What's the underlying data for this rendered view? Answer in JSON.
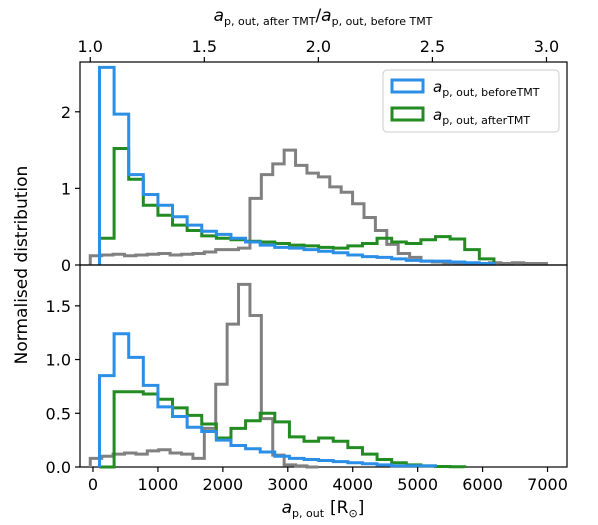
{
  "chart_data": {
    "type": "histogram",
    "xlabel": {
      "main": "a",
      "sub": "p, out",
      "unit": "[R",
      "unit_sub": "⊙",
      "unit_close": "]"
    },
    "ylabel": "Normalised distribution",
    "top_xlabel": {
      "num_main": "a",
      "num_sub": "p, out, after TMT",
      "slash": "/",
      "den_main": "a",
      "den_sub": "p, out, before TMT"
    },
    "xlim": [
      -200,
      7300
    ],
    "top_xlim": [
      0.955,
      3.09
    ],
    "xticks": [
      0,
      1000,
      2000,
      3000,
      4000,
      5000,
      6000,
      7000
    ],
    "top_xticks": [
      "1.0",
      "1.5",
      "2.0",
      "2.5",
      "3.0"
    ],
    "top_xtick_values": [
      1.0,
      1.5,
      2.0,
      2.5,
      3.0
    ],
    "legend": {
      "placement": "upper right",
      "entries": [
        {
          "main": "a",
          "sub": "p, out, beforeTMT",
          "color": "#2b8fe8"
        },
        {
          "main": "a",
          "sub": "p, out, afterTMT",
          "color": "#228b22"
        }
      ]
    },
    "colors": {
      "before": "#2b8fe8",
      "after": "#228b22",
      "ratio": "#808080"
    },
    "panels": [
      {
        "ylim": [
          0,
          2.65
        ],
        "yticks": [
          0,
          1,
          2
        ],
        "series": [
          {
            "key": "before",
            "bins_start": 100,
            "bin_width": 225,
            "values": [
              2.58,
              1.97,
              1.18,
              0.92,
              0.78,
              0.63,
              0.52,
              0.44,
              0.4,
              0.35,
              0.3,
              0.26,
              0.23,
              0.22,
              0.2,
              0.18,
              0.16,
              0.13,
              0.11,
              0.1,
              0.08,
              0.06,
              0.05,
              0.05,
              0.04,
              0.03,
              0.02
            ]
          },
          {
            "key": "after",
            "bins_start": 100,
            "bin_width": 225,
            "values": [
              0.35,
              1.52,
              1.12,
              0.78,
              0.65,
              0.52,
              0.45,
              0.38,
              0.35,
              0.33,
              0.31,
              0.3,
              0.28,
              0.26,
              0.25,
              0.23,
              0.22,
              0.25,
              0.28,
              0.35,
              0.3,
              0.28,
              0.33,
              0.37,
              0.34,
              0.2,
              0.08
            ]
          },
          {
            "key": "ratio",
            "x_start": 1.0,
            "bin_width": 0.05,
            "values": [
              0.12,
              0.13,
              0.14,
              0.12,
              0.13,
              0.14,
              0.15,
              0.13,
              0.14,
              0.15,
              0.17,
              0.2,
              0.2,
              0.22,
              0.87,
              1.18,
              1.32,
              1.5,
              1.3,
              1.2,
              1.15,
              1.02,
              0.95,
              0.8,
              0.62,
              0.45,
              0.27,
              0.15,
              0.1,
              0.05,
              0.04,
              0.03,
              0.02,
              0.02,
              0.02,
              0.03,
              0.02,
              0.03,
              0.02,
              0.02
            ]
          }
        ]
      },
      {
        "ylim": [
          0,
          1.88
        ],
        "yticks": [
          "0.0",
          "0.5",
          "1.0",
          "1.5"
        ],
        "series": [
          {
            "key": "before",
            "bins_start": 100,
            "bin_width": 225,
            "values": [
              0.85,
              1.24,
              1.02,
              0.76,
              0.56,
              0.47,
              0.37,
              0.33,
              0.25,
              0.2,
              0.17,
              0.14,
              0.1,
              0.08,
              0.07,
              0.06,
              0.05,
              0.04,
              0.03,
              0.02,
              0.01,
              0.01,
              0.01
            ]
          },
          {
            "key": "after",
            "bins_start": 100,
            "bin_width": 225,
            "values": [
              0.0,
              0.7,
              0.7,
              0.68,
              0.63,
              0.55,
              0.48,
              0.4,
              0.27,
              0.36,
              0.43,
              0.5,
              0.42,
              0.28,
              0.24,
              0.27,
              0.24,
              0.18,
              0.12,
              0.07,
              0.04,
              0.02,
              0.01,
              0.005,
              0.002
            ]
          },
          {
            "key": "ratio",
            "x_start": 1.0,
            "bin_width": 0.05,
            "values": [
              0.08,
              0.1,
              0.12,
              0.13,
              0.12,
              0.15,
              0.16,
              0.13,
              0.12,
              0.08,
              0.36,
              0.77,
              1.33,
              1.7,
              1.41,
              0.45,
              0.11,
              0.02,
              0.01,
              0.0
            ]
          }
        ]
      }
    ]
  }
}
